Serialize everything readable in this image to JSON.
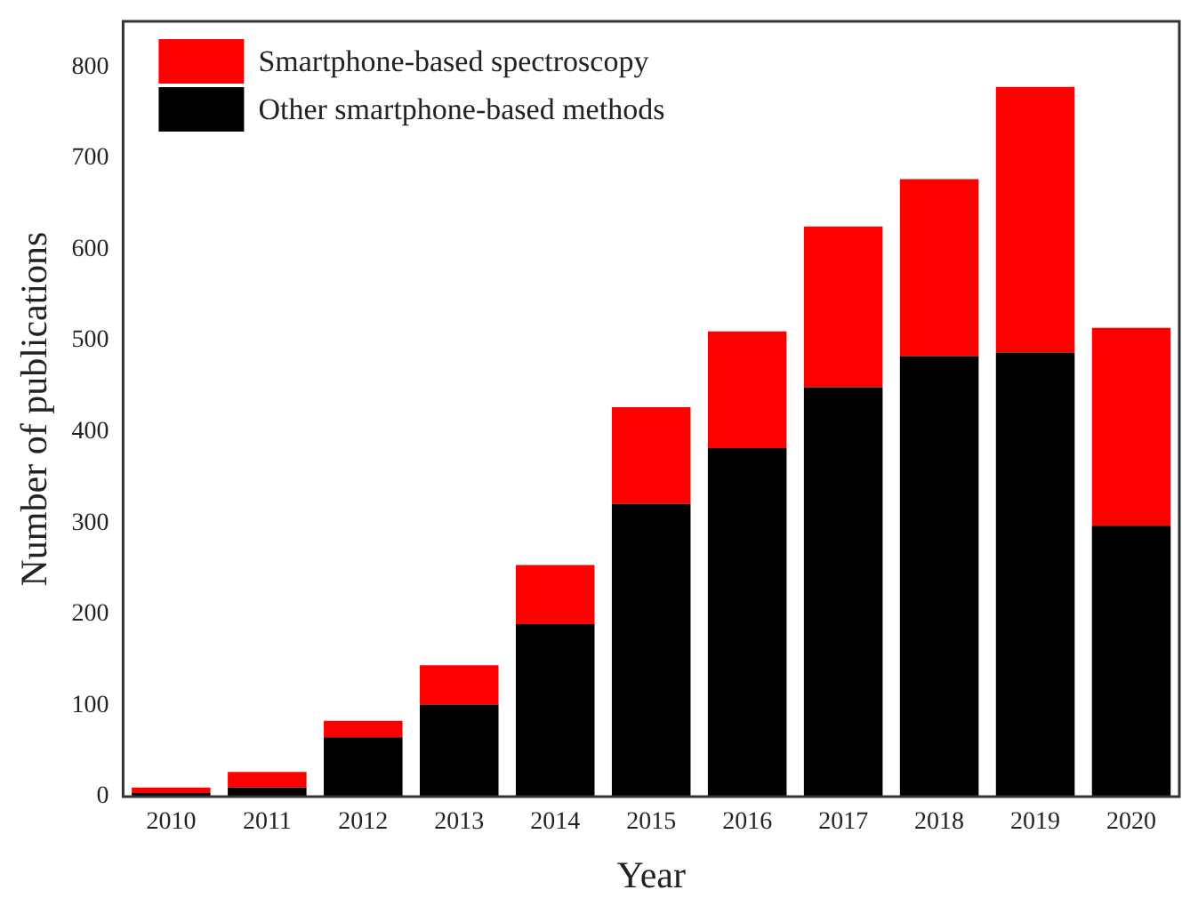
{
  "chart_data": {
    "type": "bar",
    "xlabel": "Year",
    "ylabel": "Number of publications",
    "categories": [
      "2010",
      "2011",
      "2012",
      "2013",
      "2014",
      "2015",
      "2016",
      "2017",
      "2018",
      "2019",
      "2020"
    ],
    "series": [
      {
        "name": "Other smartphone-based methods",
        "color": "#000000",
        "values": [
          4,
          10,
          65,
          101,
          189,
          321,
          382,
          449,
          483,
          487,
          297
        ]
      },
      {
        "name": "Smartphone-based spectroscopy",
        "color": "#ff0000",
        "values": [
          6,
          17,
          18,
          43,
          65,
          106,
          128,
          176,
          194,
          291,
          217
        ]
      }
    ],
    "stacked": true,
    "ylim": [
      0,
      850
    ],
    "yticks": [
      0,
      100,
      200,
      300,
      400,
      500,
      600,
      700,
      800
    ],
    "grid": false,
    "legend": "top left"
  }
}
